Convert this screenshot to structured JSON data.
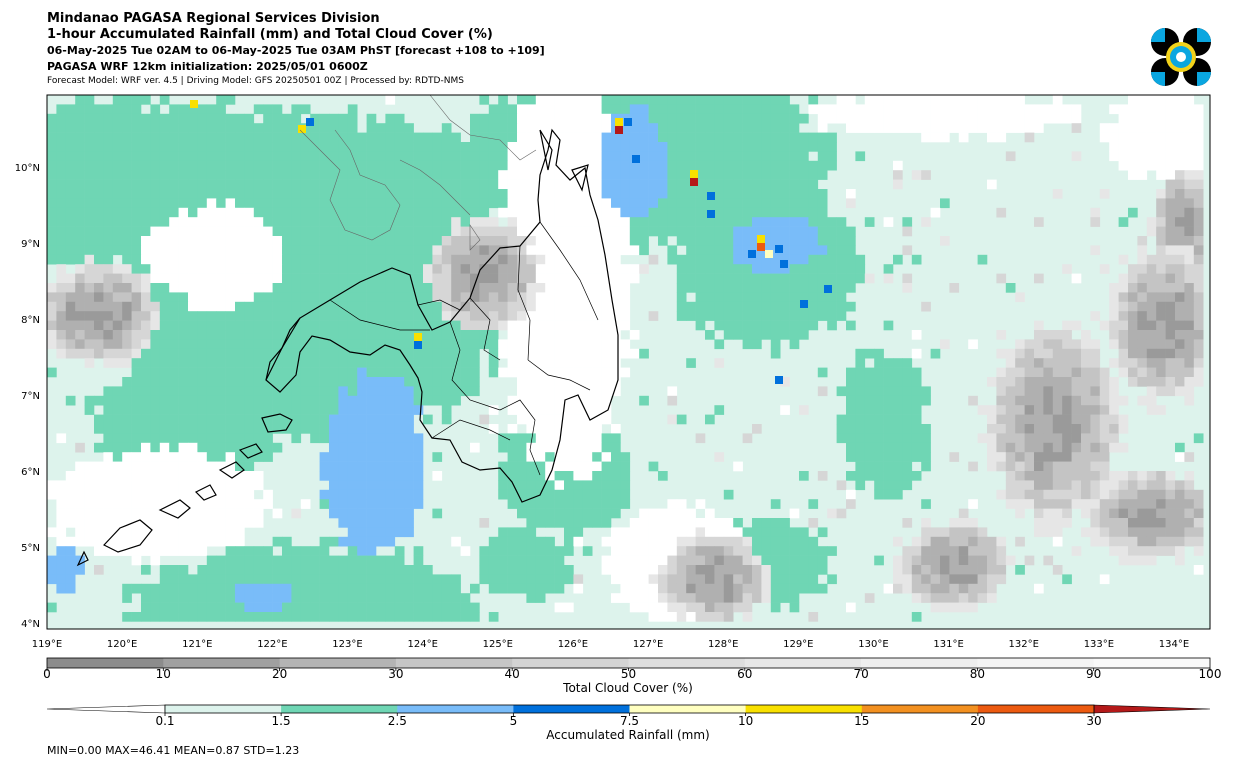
{
  "header": {
    "line1": "Mindanao PAGASA Regional Services Division",
    "line2": "1-hour Accumulated Rainfall (mm) and Total Cloud Cover (%)",
    "line3": "06-May-2025 Tue 02AM to 06-May-2025 Tue 03AM PhST [forecast +108 to +109]",
    "line4": "PAGASA WRF 12km initialization: 2025/05/01 0600Z",
    "line5": "Forecast Model: WRF ver. 4.5 | Driving Model: GFS 20250501 00Z | Processed by: RDTD-NMS"
  },
  "logo": {
    "icon": "pagasa-seal-icon",
    "colors": [
      "#0aa6e0",
      "#000000",
      "#f2d21b"
    ]
  },
  "map": {
    "lon_labels": [
      "119°E",
      "120°E",
      "121°E",
      "122°E",
      "123°E",
      "124°E",
      "125°E",
      "126°E",
      "127°E",
      "128°E",
      "129°E",
      "130°E",
      "131°E",
      "132°E",
      "133°E",
      "134°E"
    ],
    "lat_labels": [
      "10°N",
      "9°N",
      "8°N",
      "7°N",
      "6°N",
      "5°N",
      "4°N"
    ],
    "background": "#ddf3ec"
  },
  "cloud_colorbar": {
    "label": "Total Cloud Cover (%)",
    "ticks": [
      "0",
      "10",
      "20",
      "30",
      "40",
      "50",
      "60",
      "70",
      "80",
      "90",
      "100"
    ],
    "colors": [
      "#8c8c8c",
      "#a0a0a0",
      "#b4b4b4",
      "#c6c6c6",
      "#d4d4d4",
      "#dedede",
      "#e7e7e7",
      "#eeeeee",
      "#f4f4f4",
      "#f9f9f9"
    ]
  },
  "rain_colorbar": {
    "label": "Accumulated Rainfall (mm)",
    "ticks": [
      "0.1",
      "1.5",
      "2.5",
      "5",
      "7.5",
      "10",
      "15",
      "20",
      "30"
    ],
    "colors": [
      "#ffffff",
      "#ddf3ec",
      "#6fd6b4",
      "#79bcf9",
      "#0070dc",
      "#ffffc0",
      "#f8e000",
      "#f29020",
      "#ec5a10",
      "#b41919"
    ]
  },
  "stats": "MIN=0.00   MAX=46.41   MEAN=0.87   STD=1.23"
}
